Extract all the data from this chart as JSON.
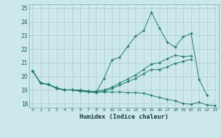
{
  "xlabel": "Humidex (Indice chaleur)",
  "bg_color": "#cce8ec",
  "grid_color": "#aacccc",
  "line_color": "#1a7a6e",
  "xlim": [
    -0.5,
    23.5
  ],
  "ylim": [
    17.7,
    25.3
  ],
  "yticks": [
    18,
    19,
    20,
    21,
    22,
    23,
    24,
    25
  ],
  "xticks": [
    0,
    1,
    2,
    3,
    4,
    5,
    6,
    7,
    8,
    9,
    10,
    11,
    12,
    13,
    14,
    15,
    16,
    17,
    18,
    19,
    20,
    21,
    22,
    23
  ],
  "line1_x": [
    0,
    1,
    2,
    3,
    4,
    5,
    6,
    7,
    8,
    9,
    10,
    11,
    12,
    13,
    14,
    15,
    16,
    17,
    18,
    19,
    20,
    21,
    22
  ],
  "line1_y": [
    20.4,
    19.5,
    19.4,
    19.1,
    19.0,
    19.0,
    18.9,
    18.85,
    18.8,
    19.85,
    21.2,
    21.4,
    22.2,
    22.95,
    23.35,
    24.7,
    23.55,
    22.5,
    22.15,
    22.9,
    23.15,
    19.8,
    18.6
  ],
  "line2_x": [
    0,
    1,
    2,
    3,
    4,
    5,
    6,
    7,
    8,
    9,
    10,
    11,
    12,
    13,
    14,
    15,
    16,
    17,
    18,
    19,
    20
  ],
  "line2_y": [
    20.4,
    19.5,
    19.4,
    19.15,
    19.0,
    19.0,
    18.95,
    18.9,
    18.9,
    19.0,
    19.2,
    19.5,
    19.8,
    20.1,
    20.5,
    20.9,
    21.0,
    21.3,
    21.55,
    21.45,
    21.5
  ],
  "line3_x": [
    0,
    1,
    2,
    3,
    4,
    5,
    6,
    7,
    8,
    9,
    10,
    11,
    12,
    13,
    14,
    15,
    16,
    17,
    18,
    19,
    20
  ],
  "line3_y": [
    20.4,
    19.5,
    19.4,
    19.15,
    19.0,
    19.0,
    18.95,
    18.9,
    18.8,
    18.9,
    19.1,
    19.35,
    19.6,
    19.85,
    20.2,
    20.5,
    20.5,
    20.7,
    20.95,
    21.1,
    21.25
  ],
  "line4_x": [
    0,
    1,
    2,
    3,
    4,
    5,
    6,
    7,
    8,
    9,
    10,
    11,
    12,
    13,
    14,
    15,
    16,
    17,
    18,
    19,
    20,
    21,
    22,
    23
  ],
  "line4_y": [
    20.4,
    19.5,
    19.4,
    19.15,
    19.0,
    19.0,
    19.0,
    18.9,
    18.85,
    18.85,
    18.85,
    18.85,
    18.8,
    18.8,
    18.75,
    18.6,
    18.45,
    18.3,
    18.2,
    18.0,
    17.95,
    18.1,
    17.9,
    17.85
  ]
}
